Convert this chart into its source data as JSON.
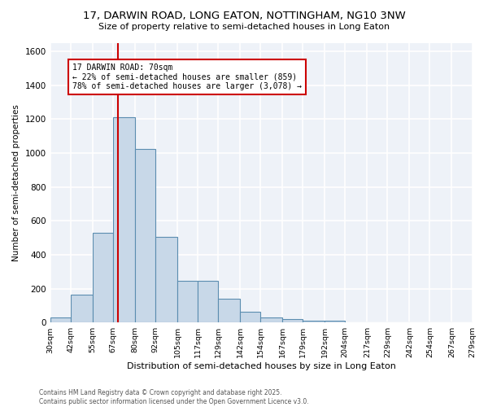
{
  "title": "17, DARWIN ROAD, LONG EATON, NOTTINGHAM, NG10 3NW",
  "subtitle": "Size of property relative to semi-detached houses in Long Eaton",
  "xlabel": "Distribution of semi-detached houses by size in Long Eaton",
  "ylabel": "Number of semi-detached properties",
  "bar_heights": [
    30,
    165,
    530,
    1210,
    1025,
    505,
    245,
    245,
    140,
    65,
    30,
    20,
    10,
    10,
    0,
    0,
    0,
    0,
    0,
    0
  ],
  "bin_labels": [
    "30sqm",
    "42sqm",
    "55sqm",
    "67sqm",
    "80sqm",
    "92sqm",
    "105sqm",
    "117sqm",
    "129sqm",
    "142sqm",
    "154sqm",
    "167sqm",
    "179sqm",
    "192sqm",
    "204sqm",
    "217sqm",
    "229sqm",
    "242sqm",
    "254sqm",
    "267sqm",
    "279sqm"
  ],
  "bin_edges": [
    30,
    42,
    55,
    67,
    80,
    92,
    105,
    117,
    129,
    142,
    154,
    167,
    179,
    192,
    204,
    217,
    229,
    242,
    254,
    267,
    279
  ],
  "bar_color": "#c8d8e8",
  "bar_edge_color": "#5b8db0",
  "vline_x": 70,
  "vline_color": "#cc0000",
  "annotation_title": "17 DARWIN ROAD: 70sqm",
  "annotation_line1": "← 22% of semi-detached houses are smaller (859)",
  "annotation_line2": "78% of semi-detached houses are larger (3,078) →",
  "annotation_box_color": "#cc0000",
  "ylim": [
    0,
    1650
  ],
  "yticks": [
    0,
    200,
    400,
    600,
    800,
    1000,
    1200,
    1400,
    1600
  ],
  "footer_line1": "Contains HM Land Registry data © Crown copyright and database right 2025.",
  "footer_line2": "Contains public sector information licensed under the Open Government Licence v3.0.",
  "background_color": "#eef2f8",
  "grid_color": "#ffffff",
  "fig_bg": "#ffffff"
}
